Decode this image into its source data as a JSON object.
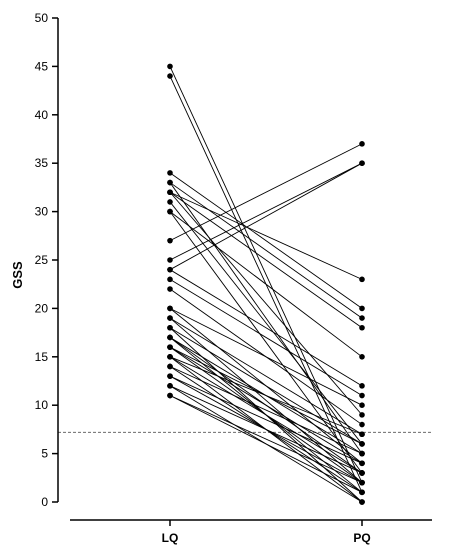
{
  "chart_data": {
    "type": "line",
    "title": "",
    "xlabel": "",
    "ylabel": "GSS",
    "categories": [
      "LQ",
      "PQ"
    ],
    "ylim": [
      0,
      50
    ],
    "yticks": [
      0,
      5,
      10,
      15,
      20,
      25,
      30,
      35,
      40,
      45,
      50
    ],
    "yticklabels": [
      "0",
      "5",
      "10",
      "15",
      "20",
      "25",
      "30",
      "35",
      "40",
      "45",
      "50"
    ],
    "reference_line": {
      "y": 7.2,
      "style": "dashed"
    },
    "grid": false,
    "legend": "none",
    "line_color": "#000000",
    "pairs": [
      {
        "LQ": 45,
        "PQ": 2
      },
      {
        "LQ": 44,
        "PQ": 1
      },
      {
        "LQ": 34,
        "PQ": 20
      },
      {
        "LQ": 33,
        "PQ": 19
      },
      {
        "LQ": 33,
        "PQ": 5
      },
      {
        "LQ": 32,
        "PQ": 23
      },
      {
        "LQ": 32,
        "PQ": 18
      },
      {
        "LQ": 32,
        "PQ": 9
      },
      {
        "LQ": 31,
        "PQ": 6
      },
      {
        "LQ": 30,
        "PQ": 15
      },
      {
        "LQ": 30,
        "PQ": 3
      },
      {
        "LQ": 27,
        "PQ": 37
      },
      {
        "LQ": 25,
        "PQ": 35
      },
      {
        "LQ": 24,
        "PQ": 35
      },
      {
        "LQ": 24,
        "PQ": 12
      },
      {
        "LQ": 23,
        "PQ": 11
      },
      {
        "LQ": 22,
        "PQ": 8
      },
      {
        "LQ": 20,
        "PQ": 10
      },
      {
        "LQ": 20,
        "PQ": 4
      },
      {
        "LQ": 19,
        "PQ": 7
      },
      {
        "LQ": 19,
        "PQ": 2
      },
      {
        "LQ": 18,
        "PQ": 6
      },
      {
        "LQ": 18,
        "PQ": 0
      },
      {
        "LQ": 17,
        "PQ": 5
      },
      {
        "LQ": 17,
        "PQ": 3
      },
      {
        "LQ": 17,
        "PQ": 1
      },
      {
        "LQ": 16,
        "PQ": 6
      },
      {
        "LQ": 16,
        "PQ": 4
      },
      {
        "LQ": 16,
        "PQ": 2
      },
      {
        "LQ": 15,
        "PQ": 7
      },
      {
        "LQ": 15,
        "PQ": 3
      },
      {
        "LQ": 15,
        "PQ": 0
      },
      {
        "LQ": 14,
        "PQ": 5
      },
      {
        "LQ": 14,
        "PQ": 1
      },
      {
        "LQ": 13,
        "PQ": 4
      },
      {
        "LQ": 13,
        "PQ": 2
      },
      {
        "LQ": 12,
        "PQ": 3
      },
      {
        "LQ": 12,
        "PQ": 0
      },
      {
        "LQ": 11,
        "PQ": 2
      },
      {
        "LQ": 11,
        "PQ": 1
      }
    ]
  }
}
